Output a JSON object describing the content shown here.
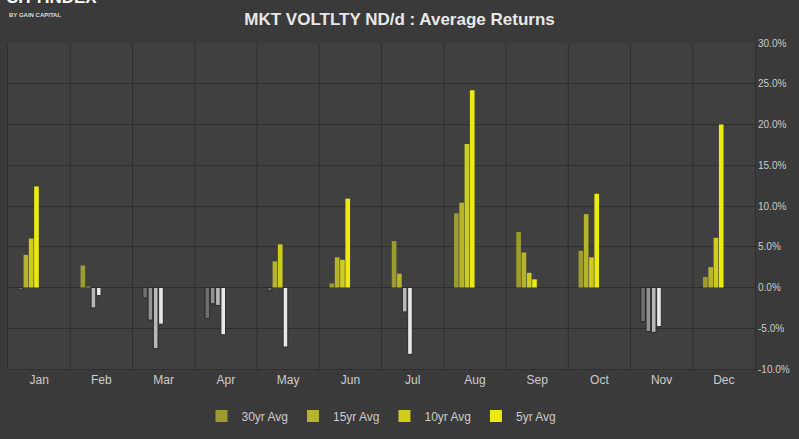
{
  "chart_data": {
    "type": "bar",
    "title": "MKT VOLTLTY ND/d : Average Returns",
    "annotations": [
      {
        "text": "CITYINDEX"
      },
      {
        "text": "BY GAIN CAPITAL"
      }
    ],
    "categories": [
      "Jan",
      "Feb",
      "Mar",
      "Apr",
      "May",
      "Jun",
      "Jul",
      "Aug",
      "Sep",
      "Oct",
      "Nov",
      "Dec"
    ],
    "series": [
      {
        "name": "30yr Avg",
        "color": "#9e9b30",
        "values": [
          -0.3,
          2.7,
          -1.3,
          -3.8,
          -0.4,
          0.5,
          5.7,
          9.1,
          6.8,
          4.5,
          -4.2,
          1.3
        ],
        "colors": [
          "#6e6e6e",
          "#9e9b30",
          "#6e6e6e",
          "#6e6e6e",
          "#6e6e6e",
          "#9e9b30",
          "#9e9b30",
          "#9e9b30",
          "#9e9b30",
          "#9e9b30",
          "#6e6e6e",
          "#9e9b30"
        ]
      },
      {
        "name": "15yr Avg",
        "color": "#b6b42a",
        "values": [
          4.0,
          0.1,
          -4.0,
          -2.0,
          3.2,
          3.7,
          1.7,
          10.4,
          4.3,
          9.0,
          -5.4,
          2.5
        ],
        "colors": [
          "#b6b42a",
          "#b6b42a",
          "#929292",
          "#929292",
          "#b6b42a",
          "#b6b42a",
          "#b6b42a",
          "#b6b42a",
          "#b6b42a",
          "#b6b42a",
          "#929292",
          "#b6b42a"
        ]
      },
      {
        "name": "10yr Avg",
        "color": "#cfcd1c",
        "values": [
          6.0,
          -2.5,
          -7.5,
          -2.2,
          5.3,
          3.4,
          -3.0,
          17.6,
          1.8,
          3.7,
          -5.5,
          6.1
        ],
        "colors": [
          "#cfcd1c",
          "#b8b8b8",
          "#b8b8b8",
          "#b8b8b8",
          "#cfcd1c",
          "#cfcd1c",
          "#b8b8b8",
          "#cfcd1c",
          "#cfcd1c",
          "#cfcd1c",
          "#b8b8b8",
          "#cfcd1c"
        ]
      },
      {
        "name": "5yr Avg",
        "color": "#ecea10",
        "values": [
          12.4,
          -1.0,
          -4.5,
          -5.8,
          -7.3,
          10.9,
          -8.2,
          24.2,
          1.0,
          11.5,
          -4.8,
          20.0
        ],
        "colors": [
          "#ecea10",
          "#e8e8e8",
          "#e8e8e8",
          "#e8e8e8",
          "#e8e8e8",
          "#ecea10",
          "#e8e8e8",
          "#ecea10",
          "#ecea10",
          "#ecea10",
          "#e8e8e8",
          "#ecea10"
        ]
      }
    ],
    "ylim": [
      -10,
      30
    ],
    "yticks": [
      {
        "value": -10,
        "label": "-10.0%"
      },
      {
        "value": -5,
        "label": "-5.0%"
      },
      {
        "value": 0,
        "label": "0.0%"
      },
      {
        "value": 5,
        "label": "5.0%"
      },
      {
        "value": 10,
        "label": "10.0%"
      },
      {
        "value": 15,
        "label": "15.0%"
      },
      {
        "value": 20,
        "label": "20.0%"
      },
      {
        "value": 25,
        "label": "25.0%"
      },
      {
        "value": 30,
        "label": "30.0%"
      }
    ],
    "grid": true,
    "legend": "bottom"
  }
}
